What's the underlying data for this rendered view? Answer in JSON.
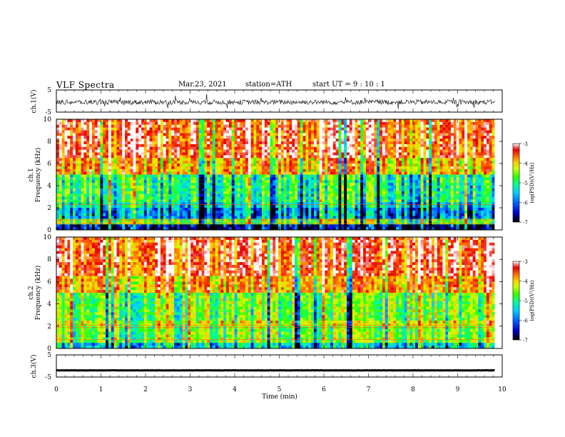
{
  "chart_data": {
    "type": "heatmap",
    "title": "VLF  Spectra",
    "date": "Mar.23, 2021",
    "station": "station=ATH",
    "start": "start  UT  =   9  : 10 : 1",
    "xlabel": "Time  (min)",
    "xlim": [
      0,
      10
    ],
    "xticks": [
      "0",
      "1",
      "2",
      "3",
      "4",
      "5",
      "6",
      "7",
      "8",
      "9",
      "10"
    ],
    "panels": [
      {
        "type": "line",
        "ylabel": "ch.1(V)",
        "ylim": [
          -5,
          5
        ],
        "yticks": [
          "5",
          "-5"
        ],
        "note": "noisy waveform around -0.5 V"
      },
      {
        "type": "heatmap",
        "ylabel": "ch.1\nFrequency (kHz)",
        "ylabel_line1": "ch.1",
        "ylabel_line2": "Frequency (kHz)",
        "ylim": [
          0,
          10
        ],
        "yticks": [
          "10",
          "8",
          "6",
          "4",
          "2",
          "0"
        ],
        "colorbar_label": "log(PSD)(V²/Hz)",
        "clim": [
          -7,
          -3
        ],
        "cticks": [
          "-3",
          "-4",
          "-5",
          "-6",
          "-7"
        ]
      },
      {
        "type": "heatmap",
        "ylabel": "ch.2\nFrequency (kHz)",
        "ylabel_line1": "ch.2",
        "ylabel_line2": "Frequency (kHz)",
        "ylim": [
          0,
          10
        ],
        "yticks": [
          "10",
          "8",
          "6",
          "4",
          "2",
          "0"
        ],
        "colorbar_label": "log(PSD)(V²/Hz)",
        "clim": [
          -7,
          -3
        ],
        "cticks": [
          "-3",
          "-4",
          "-5",
          "-6",
          "-7"
        ]
      },
      {
        "type": "line",
        "ylabel": "ch.3(V)",
        "ylim": [
          -5,
          5
        ],
        "yticks": [
          "5",
          "-5"
        ],
        "note": "flat trace near -2 V"
      }
    ],
    "colormap": [
      "#000000",
      "#0000cc",
      "#0066ff",
      "#00ccff",
      "#00ff99",
      "#33ff00",
      "#ccff00",
      "#ffcc00",
      "#ff6600",
      "#e60000",
      "#ffffff"
    ],
    "data_ends_at_min": 9.83
  }
}
